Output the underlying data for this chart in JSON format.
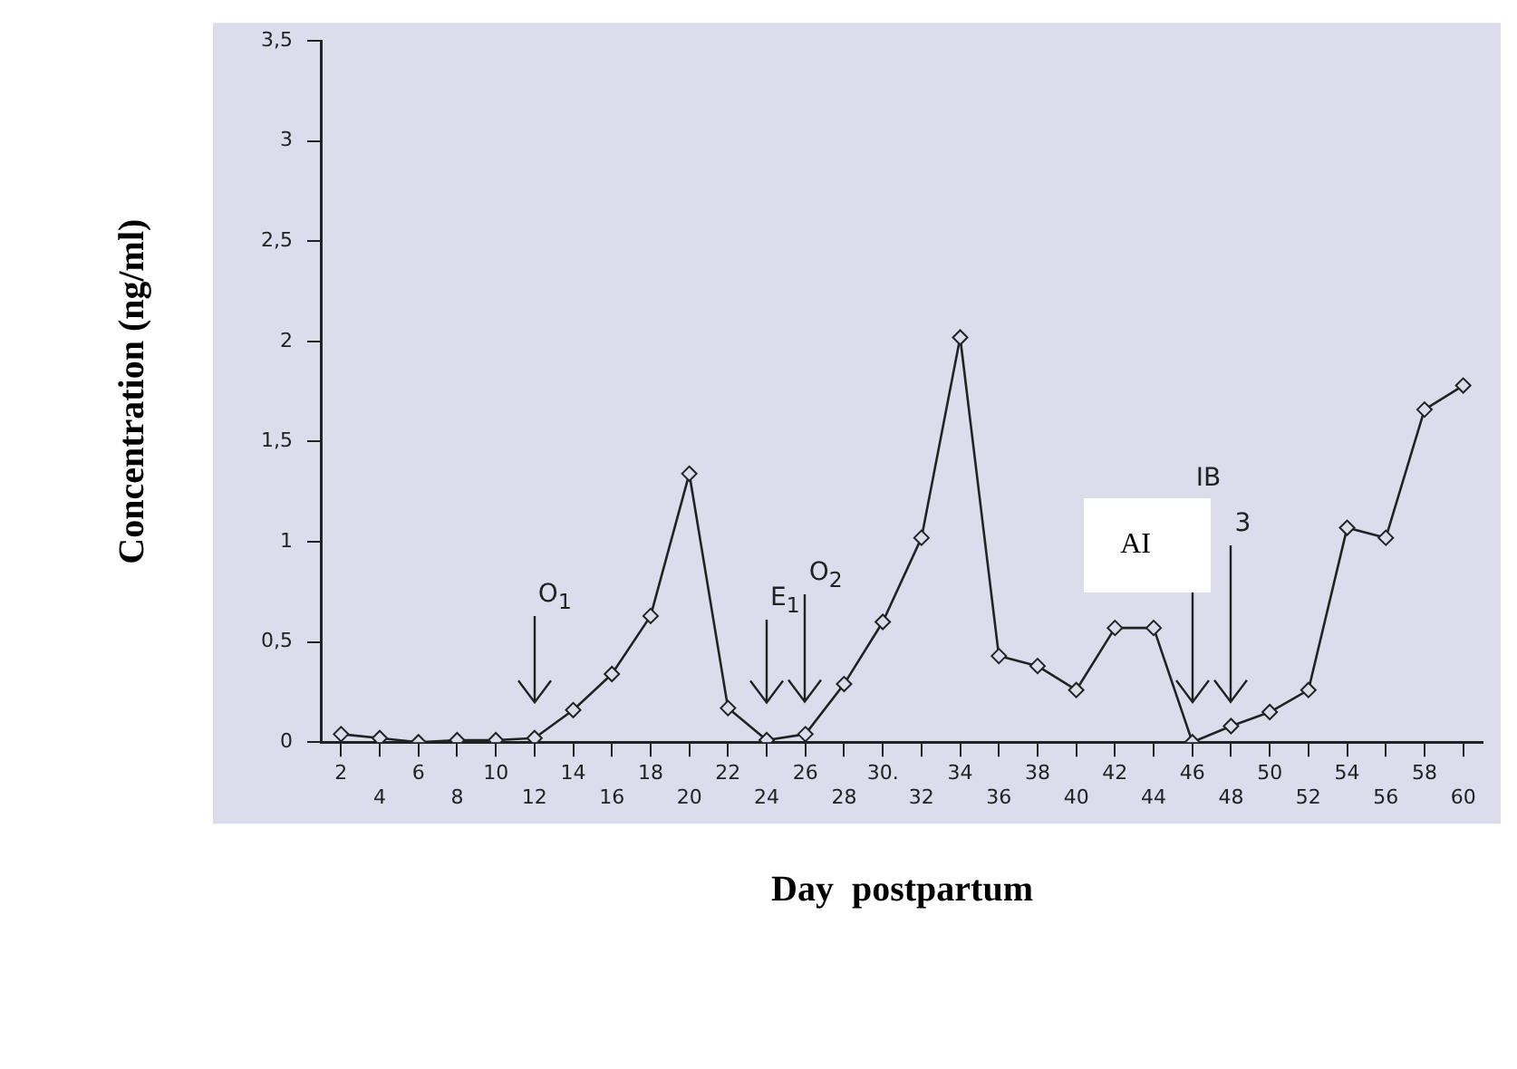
{
  "chart_data": {
    "type": "line",
    "xlabel": "Day  postpartum",
    "ylabel": "Concentration (ng/ml)",
    "categories": [
      "2",
      "4",
      "6",
      "8",
      "10",
      "12",
      "14",
      "16",
      "18",
      "20",
      "22",
      "24",
      "26",
      "28",
      "30.",
      "32",
      "34",
      "36",
      "38",
      "40",
      "42",
      "44",
      "46",
      "48",
      "50",
      "52",
      "54",
      "56",
      "58",
      "60"
    ],
    "series": [
      {
        "color": "#222222",
        "values": [
          0.04,
          0.02,
          0.0,
          0.01,
          0.01,
          0.02,
          0.16,
          0.34,
          0.63,
          1.34,
          0.17,
          0.01,
          0.04,
          0.29,
          0.6,
          1.02,
          2.02,
          0.43,
          0.38,
          0.26,
          0.57,
          0.57,
          0.0,
          0.08,
          0.15,
          0.26,
          1.07,
          1.02,
          1.66,
          1.78
        ]
      }
    ],
    "ylim": [
      0,
      3.5
    ],
    "yticks": [
      0,
      {
        "value": 0.5,
        "label": "0,5"
      },
      1,
      {
        "value": 1.5,
        "label": "1,5"
      },
      2,
      {
        "value": 2.5,
        "label": "2,5"
      },
      3,
      {
        "value": 3.5,
        "label": "3,5"
      }
    ],
    "marker": "diamond",
    "line_style": "solid",
    "grid": false,
    "legend": false,
    "annotations": [
      "O$_{1}$",
      "E$_{1}$",
      "O$_{2}$",
      "IB",
      "3",
      "AI"
    ]
  }
}
